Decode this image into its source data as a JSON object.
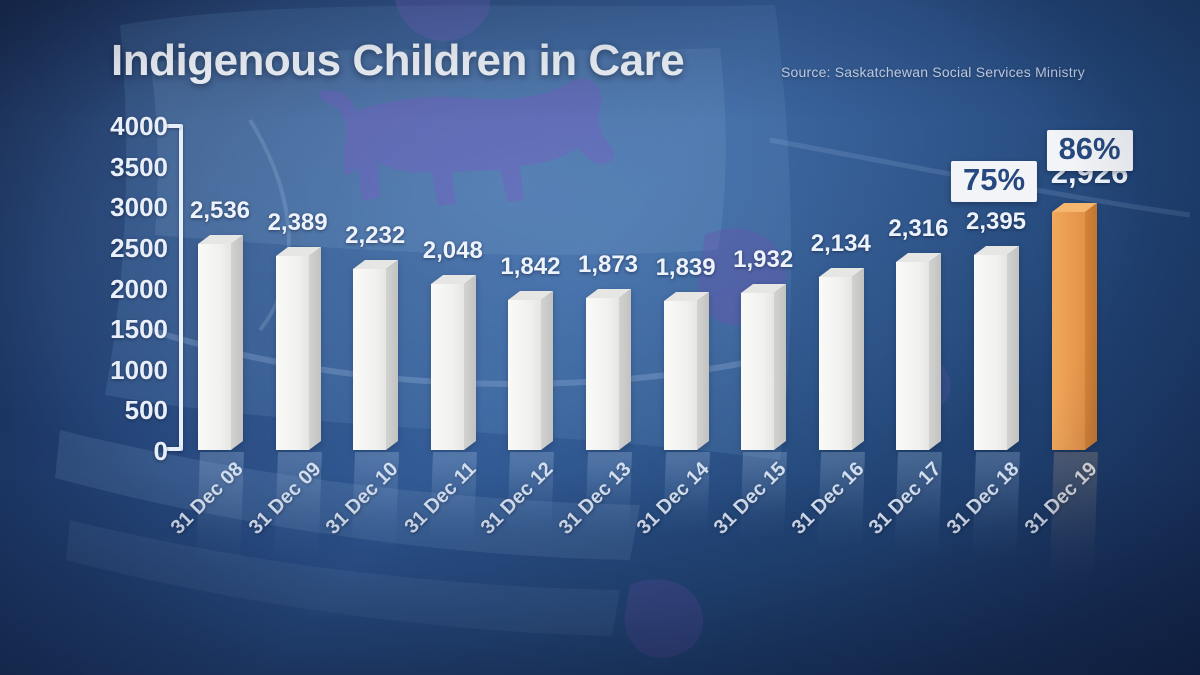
{
  "header": {
    "title": "Indigenous Children in Care",
    "source": "Source: Saskatchewan Social Services Ministry"
  },
  "chart_data": {
    "type": "bar",
    "title": "Indigenous Children in Care",
    "source_note": "Source: Saskatchewan Social Services Ministry",
    "categories": [
      "31 Dec 08",
      "31 Dec 09",
      "31 Dec 10",
      "31 Dec 11",
      "31 Dec 12",
      "31 Dec 13",
      "31 Dec 14",
      "31 Dec 15",
      "31 Dec 16",
      "31 Dec 17",
      "31 Dec 18",
      "31 Dec 19"
    ],
    "values": [
      2536,
      2389,
      2232,
      2048,
      1842,
      1873,
      1839,
      1932,
      2134,
      2316,
      2395,
      2926
    ],
    "value_labels": [
      "2,536",
      "2,389",
      "2,232",
      "2,048",
      "1,842",
      "1,873",
      "1,839",
      "1,932",
      "2,134",
      "2,316",
      "2,395",
      "2,926"
    ],
    "ylim": [
      0,
      4000
    ],
    "y_tick_values": [
      4000,
      3500,
      3000,
      2500,
      2000,
      1500,
      1000,
      500,
      0
    ],
    "y_tick_labels": [
      "4000",
      "3500",
      "3000",
      "2500",
      "2000",
      "1500",
      "1000",
      "500",
      "0"
    ],
    "grid": false,
    "legend": false,
    "highlight_index": 11,
    "bar_color": "#f3f3f1",
    "highlight_color": "#eb9f50",
    "annotations": [
      {
        "label": "75%",
        "category": "31 Dec 18"
      },
      {
        "label": "86%",
        "category": "31 Dec 19"
      }
    ]
  },
  "colors": {
    "background_dark": "#16294e",
    "background_mid": "#2d5590",
    "text_light": "#eef3fb",
    "annotation_text": "#27497f",
    "annotation_bg": "#f2f4f7"
  }
}
